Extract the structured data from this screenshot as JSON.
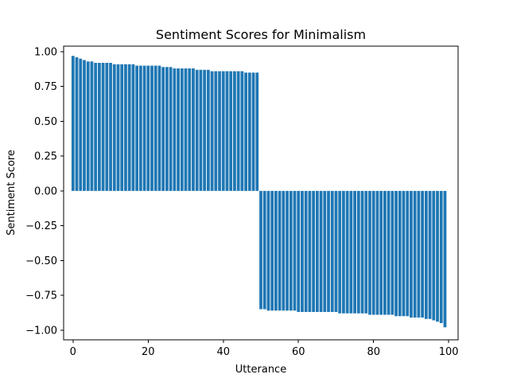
{
  "chart_data": {
    "type": "bar",
    "title": "Sentiment Scores for Minimalism",
    "xlabel": "Utterance",
    "ylabel": "Sentiment Score",
    "xlim": [
      -2.5,
      102.5
    ],
    "ylim": [
      -1.07,
      1.04
    ],
    "grid": false,
    "bar_color": "#1f77b4",
    "x_ticks": [
      {
        "value": 0,
        "label": "0"
      },
      {
        "value": 20,
        "label": "20"
      },
      {
        "value": 40,
        "label": "40"
      },
      {
        "value": 60,
        "label": "60"
      },
      {
        "value": 80,
        "label": "80"
      },
      {
        "value": 100,
        "label": "100"
      }
    ],
    "y_ticks": [
      {
        "value": 1.0,
        "label": "1.00"
      },
      {
        "value": 0.75,
        "label": "0.75"
      },
      {
        "value": 0.5,
        "label": "0.50"
      },
      {
        "value": 0.25,
        "label": "0.25"
      },
      {
        "value": 0.0,
        "label": "0.00"
      },
      {
        "value": -0.25,
        "label": "−0.25"
      },
      {
        "value": -0.5,
        "label": "−0.50"
      },
      {
        "value": -0.75,
        "label": "−0.75"
      },
      {
        "value": -1.0,
        "label": "−1.00"
      }
    ],
    "x": [
      0,
      1,
      2,
      3,
      4,
      5,
      6,
      7,
      8,
      9,
      10,
      11,
      12,
      13,
      14,
      15,
      16,
      17,
      18,
      19,
      20,
      21,
      22,
      23,
      24,
      25,
      26,
      27,
      28,
      29,
      30,
      31,
      32,
      33,
      34,
      35,
      36,
      37,
      38,
      39,
      40,
      41,
      42,
      43,
      44,
      45,
      46,
      47,
      48,
      49,
      50,
      51,
      52,
      53,
      54,
      55,
      56,
      57,
      58,
      59,
      60,
      61,
      62,
      63,
      64,
      65,
      66,
      67,
      68,
      69,
      70,
      71,
      72,
      73,
      74,
      75,
      76,
      77,
      78,
      79,
      80,
      81,
      82,
      83,
      84,
      85,
      86,
      87,
      88,
      89,
      90,
      91,
      92,
      93,
      94,
      95,
      96,
      97,
      98,
      99
    ],
    "values": [
      0.97,
      0.96,
      0.95,
      0.94,
      0.93,
      0.93,
      0.92,
      0.92,
      0.92,
      0.92,
      0.92,
      0.91,
      0.91,
      0.91,
      0.91,
      0.91,
      0.91,
      0.9,
      0.9,
      0.9,
      0.9,
      0.9,
      0.9,
      0.9,
      0.89,
      0.89,
      0.89,
      0.88,
      0.88,
      0.88,
      0.88,
      0.88,
      0.88,
      0.87,
      0.87,
      0.87,
      0.87,
      0.86,
      0.86,
      0.86,
      0.86,
      0.86,
      0.86,
      0.86,
      0.86,
      0.86,
      0.85,
      0.85,
      0.85,
      0.85,
      -0.85,
      -0.85,
      -0.86,
      -0.86,
      -0.86,
      -0.86,
      -0.86,
      -0.86,
      -0.86,
      -0.86,
      -0.87,
      -0.87,
      -0.87,
      -0.87,
      -0.87,
      -0.87,
      -0.87,
      -0.87,
      -0.87,
      -0.87,
      -0.87,
      -0.88,
      -0.88,
      -0.88,
      -0.88,
      -0.88,
      -0.88,
      -0.88,
      -0.88,
      -0.89,
      -0.89,
      -0.89,
      -0.89,
      -0.89,
      -0.89,
      -0.89,
      -0.9,
      -0.9,
      -0.9,
      -0.9,
      -0.91,
      -0.91,
      -0.91,
      -0.91,
      -0.92,
      -0.92,
      -0.93,
      -0.94,
      -0.95,
      -0.98
    ]
  }
}
